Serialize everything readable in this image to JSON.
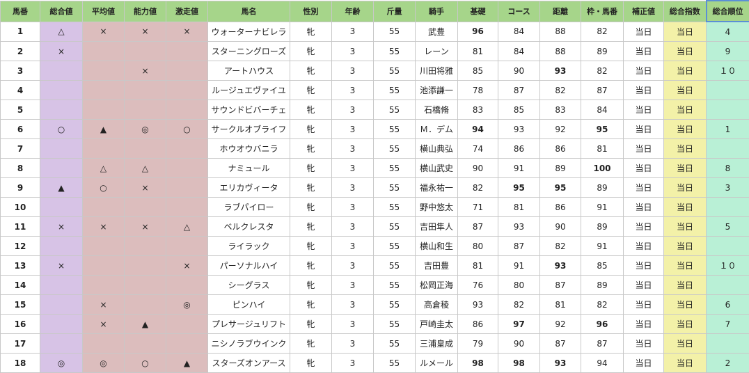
{
  "headers": [
    "馬番",
    "総合値",
    "平均値",
    "能力値",
    "激走値",
    "馬名",
    "性別",
    "年齢",
    "斤量",
    "騎手",
    "基礎",
    "コース",
    "距離",
    "枠・馬番",
    "補正値",
    "総合指数",
    "総合順位"
  ],
  "rows": [
    {
      "no": "1",
      "sogo": "△",
      "avg": "×",
      "abil": "×",
      "gek": "×",
      "name": "ウォーターナビレラ",
      "sex": "牝",
      "age": "3",
      "kin": "55",
      "jockey": "武豊",
      "kiso": "96",
      "course": "84",
      "dist": "88",
      "waku": "82",
      "hosei": "当日",
      "shisu": "当日",
      "rank": "4",
      "hi": [
        "kiso"
      ]
    },
    {
      "no": "2",
      "sogo": "×",
      "avg": "",
      "abil": "",
      "gek": "",
      "name": "スターニングローズ",
      "sex": "牝",
      "age": "3",
      "kin": "55",
      "jockey": "レーン",
      "kiso": "81",
      "course": "84",
      "dist": "88",
      "waku": "89",
      "hosei": "当日",
      "shisu": "当日",
      "rank": "9",
      "hi": []
    },
    {
      "no": "3",
      "sogo": "",
      "avg": "",
      "abil": "×",
      "gek": "",
      "name": "アートハウス",
      "sex": "牝",
      "age": "3",
      "kin": "55",
      "jockey": "川田将雅",
      "kiso": "85",
      "course": "90",
      "dist": "93",
      "waku": "82",
      "hosei": "当日",
      "shisu": "当日",
      "rank": "１０",
      "hi": [
        "dist"
      ]
    },
    {
      "no": "4",
      "sogo": "",
      "avg": "",
      "abil": "",
      "gek": "",
      "name": "ルージュエヴァイユ",
      "sex": "牝",
      "age": "3",
      "kin": "55",
      "jockey": "池添謙一",
      "kiso": "78",
      "course": "87",
      "dist": "82",
      "waku": "87",
      "hosei": "当日",
      "shisu": "当日",
      "rank": "",
      "hi": []
    },
    {
      "no": "5",
      "sogo": "",
      "avg": "",
      "abil": "",
      "gek": "",
      "name": "サウンドビバーチェ",
      "sex": "牝",
      "age": "3",
      "kin": "55",
      "jockey": "石橋脩",
      "kiso": "83",
      "course": "85",
      "dist": "83",
      "waku": "84",
      "hosei": "当日",
      "shisu": "当日",
      "rank": "",
      "hi": []
    },
    {
      "no": "6",
      "sogo": "○",
      "avg": "▲",
      "abil": "◎",
      "gek": "○",
      "name": "サークルオブライフ",
      "sex": "牝",
      "age": "3",
      "kin": "55",
      "jockey": "Ｍ．デム",
      "kiso": "94",
      "course": "93",
      "dist": "92",
      "waku": "95",
      "hosei": "当日",
      "shisu": "当日",
      "rank": "1",
      "hi": [
        "kiso",
        "waku"
      ]
    },
    {
      "no": "7",
      "sogo": "",
      "avg": "",
      "abil": "",
      "gek": "",
      "name": "ホウオウバニラ",
      "sex": "牝",
      "age": "3",
      "kin": "55",
      "jockey": "横山典弘",
      "kiso": "74",
      "course": "86",
      "dist": "86",
      "waku": "81",
      "hosei": "当日",
      "shisu": "当日",
      "rank": "",
      "hi": []
    },
    {
      "no": "8",
      "sogo": "",
      "avg": "△",
      "abil": "△",
      "gek": "",
      "name": "ナミュール",
      "sex": "牝",
      "age": "3",
      "kin": "55",
      "jockey": "横山武史",
      "kiso": "90",
      "course": "91",
      "dist": "89",
      "waku": "100",
      "hosei": "当日",
      "shisu": "当日",
      "rank": "8",
      "hi": [
        "waku"
      ]
    },
    {
      "no": "9",
      "sogo": "▲",
      "avg": "○",
      "abil": "×",
      "gek": "",
      "name": "エリカヴィータ",
      "sex": "牝",
      "age": "3",
      "kin": "55",
      "jockey": "福永祐一",
      "kiso": "82",
      "course": "95",
      "dist": "95",
      "waku": "89",
      "hosei": "当日",
      "shisu": "当日",
      "rank": "3",
      "hi": [
        "course",
        "dist"
      ]
    },
    {
      "no": "10",
      "sogo": "",
      "avg": "",
      "abil": "",
      "gek": "",
      "name": "ラブパイロー",
      "sex": "牝",
      "age": "3",
      "kin": "55",
      "jockey": "野中悠太",
      "kiso": "71",
      "course": "81",
      "dist": "86",
      "waku": "91",
      "hosei": "当日",
      "shisu": "当日",
      "rank": "",
      "hi": []
    },
    {
      "no": "11",
      "sogo": "×",
      "avg": "×",
      "abil": "×",
      "gek": "△",
      "name": "ベルクレスタ",
      "sex": "牝",
      "age": "3",
      "kin": "55",
      "jockey": "吉田隼人",
      "kiso": "87",
      "course": "93",
      "dist": "90",
      "waku": "89",
      "hosei": "当日",
      "shisu": "当日",
      "rank": "5",
      "hi": []
    },
    {
      "no": "12",
      "sogo": "",
      "avg": "",
      "abil": "",
      "gek": "",
      "name": "ライラック",
      "sex": "牝",
      "age": "3",
      "kin": "55",
      "jockey": "横山和生",
      "kiso": "80",
      "course": "87",
      "dist": "82",
      "waku": "91",
      "hosei": "当日",
      "shisu": "当日",
      "rank": "",
      "hi": []
    },
    {
      "no": "13",
      "sogo": "×",
      "avg": "",
      "abil": "",
      "gek": "×",
      "name": "パーソナルハイ",
      "sex": "牝",
      "age": "3",
      "kin": "55",
      "jockey": "吉田豊",
      "kiso": "81",
      "course": "91",
      "dist": "93",
      "waku": "85",
      "hosei": "当日",
      "shisu": "当日",
      "rank": "１０",
      "hi": [
        "dist"
      ]
    },
    {
      "no": "14",
      "sogo": "",
      "avg": "",
      "abil": "",
      "gek": "",
      "name": "シーグラス",
      "sex": "牝",
      "age": "3",
      "kin": "55",
      "jockey": "松岡正海",
      "kiso": "76",
      "course": "80",
      "dist": "87",
      "waku": "89",
      "hosei": "当日",
      "shisu": "当日",
      "rank": "",
      "hi": []
    },
    {
      "no": "15",
      "sogo": "",
      "avg": "×",
      "abil": "",
      "gek": "◎",
      "name": "ピンハイ",
      "sex": "牝",
      "age": "3",
      "kin": "55",
      "jockey": "高倉稜",
      "kiso": "93",
      "course": "82",
      "dist": "81",
      "waku": "82",
      "hosei": "当日",
      "shisu": "当日",
      "rank": "6",
      "hi": []
    },
    {
      "no": "16",
      "sogo": "",
      "avg": "×",
      "abil": "▲",
      "gek": "",
      "name": "プレサージュリフト",
      "sex": "牝",
      "age": "3",
      "kin": "55",
      "jockey": "戸崎圭太",
      "kiso": "86",
      "course": "97",
      "dist": "92",
      "waku": "96",
      "hosei": "当日",
      "shisu": "当日",
      "rank": "7",
      "hi": [
        "course",
        "waku"
      ]
    },
    {
      "no": "17",
      "sogo": "",
      "avg": "",
      "abil": "",
      "gek": "",
      "name": "ニシノラブウインク",
      "sex": "牝",
      "age": "3",
      "kin": "55",
      "jockey": "三浦皇成",
      "kiso": "79",
      "course": "90",
      "dist": "87",
      "waku": "87",
      "hosei": "当日",
      "shisu": "当日",
      "rank": "",
      "hi": []
    },
    {
      "no": "18",
      "sogo": "◎",
      "avg": "◎",
      "abil": "○",
      "gek": "▲",
      "name": "スターズオンアース",
      "sex": "牝",
      "age": "3",
      "kin": "55",
      "jockey": "ルメール",
      "kiso": "98",
      "course": "98",
      "dist": "93",
      "waku": "94",
      "hosei": "当日",
      "shisu": "当日",
      "rank": "2",
      "hi": [
        "kiso",
        "course",
        "dist"
      ]
    }
  ],
  "colors": {
    "header": "#a6d58a",
    "sogo": "#d7c3e6",
    "marks": "#dcbdbd",
    "shisu": "#f3f1a8",
    "rank": "#b9f0d6",
    "highlight": "#d6202a"
  }
}
